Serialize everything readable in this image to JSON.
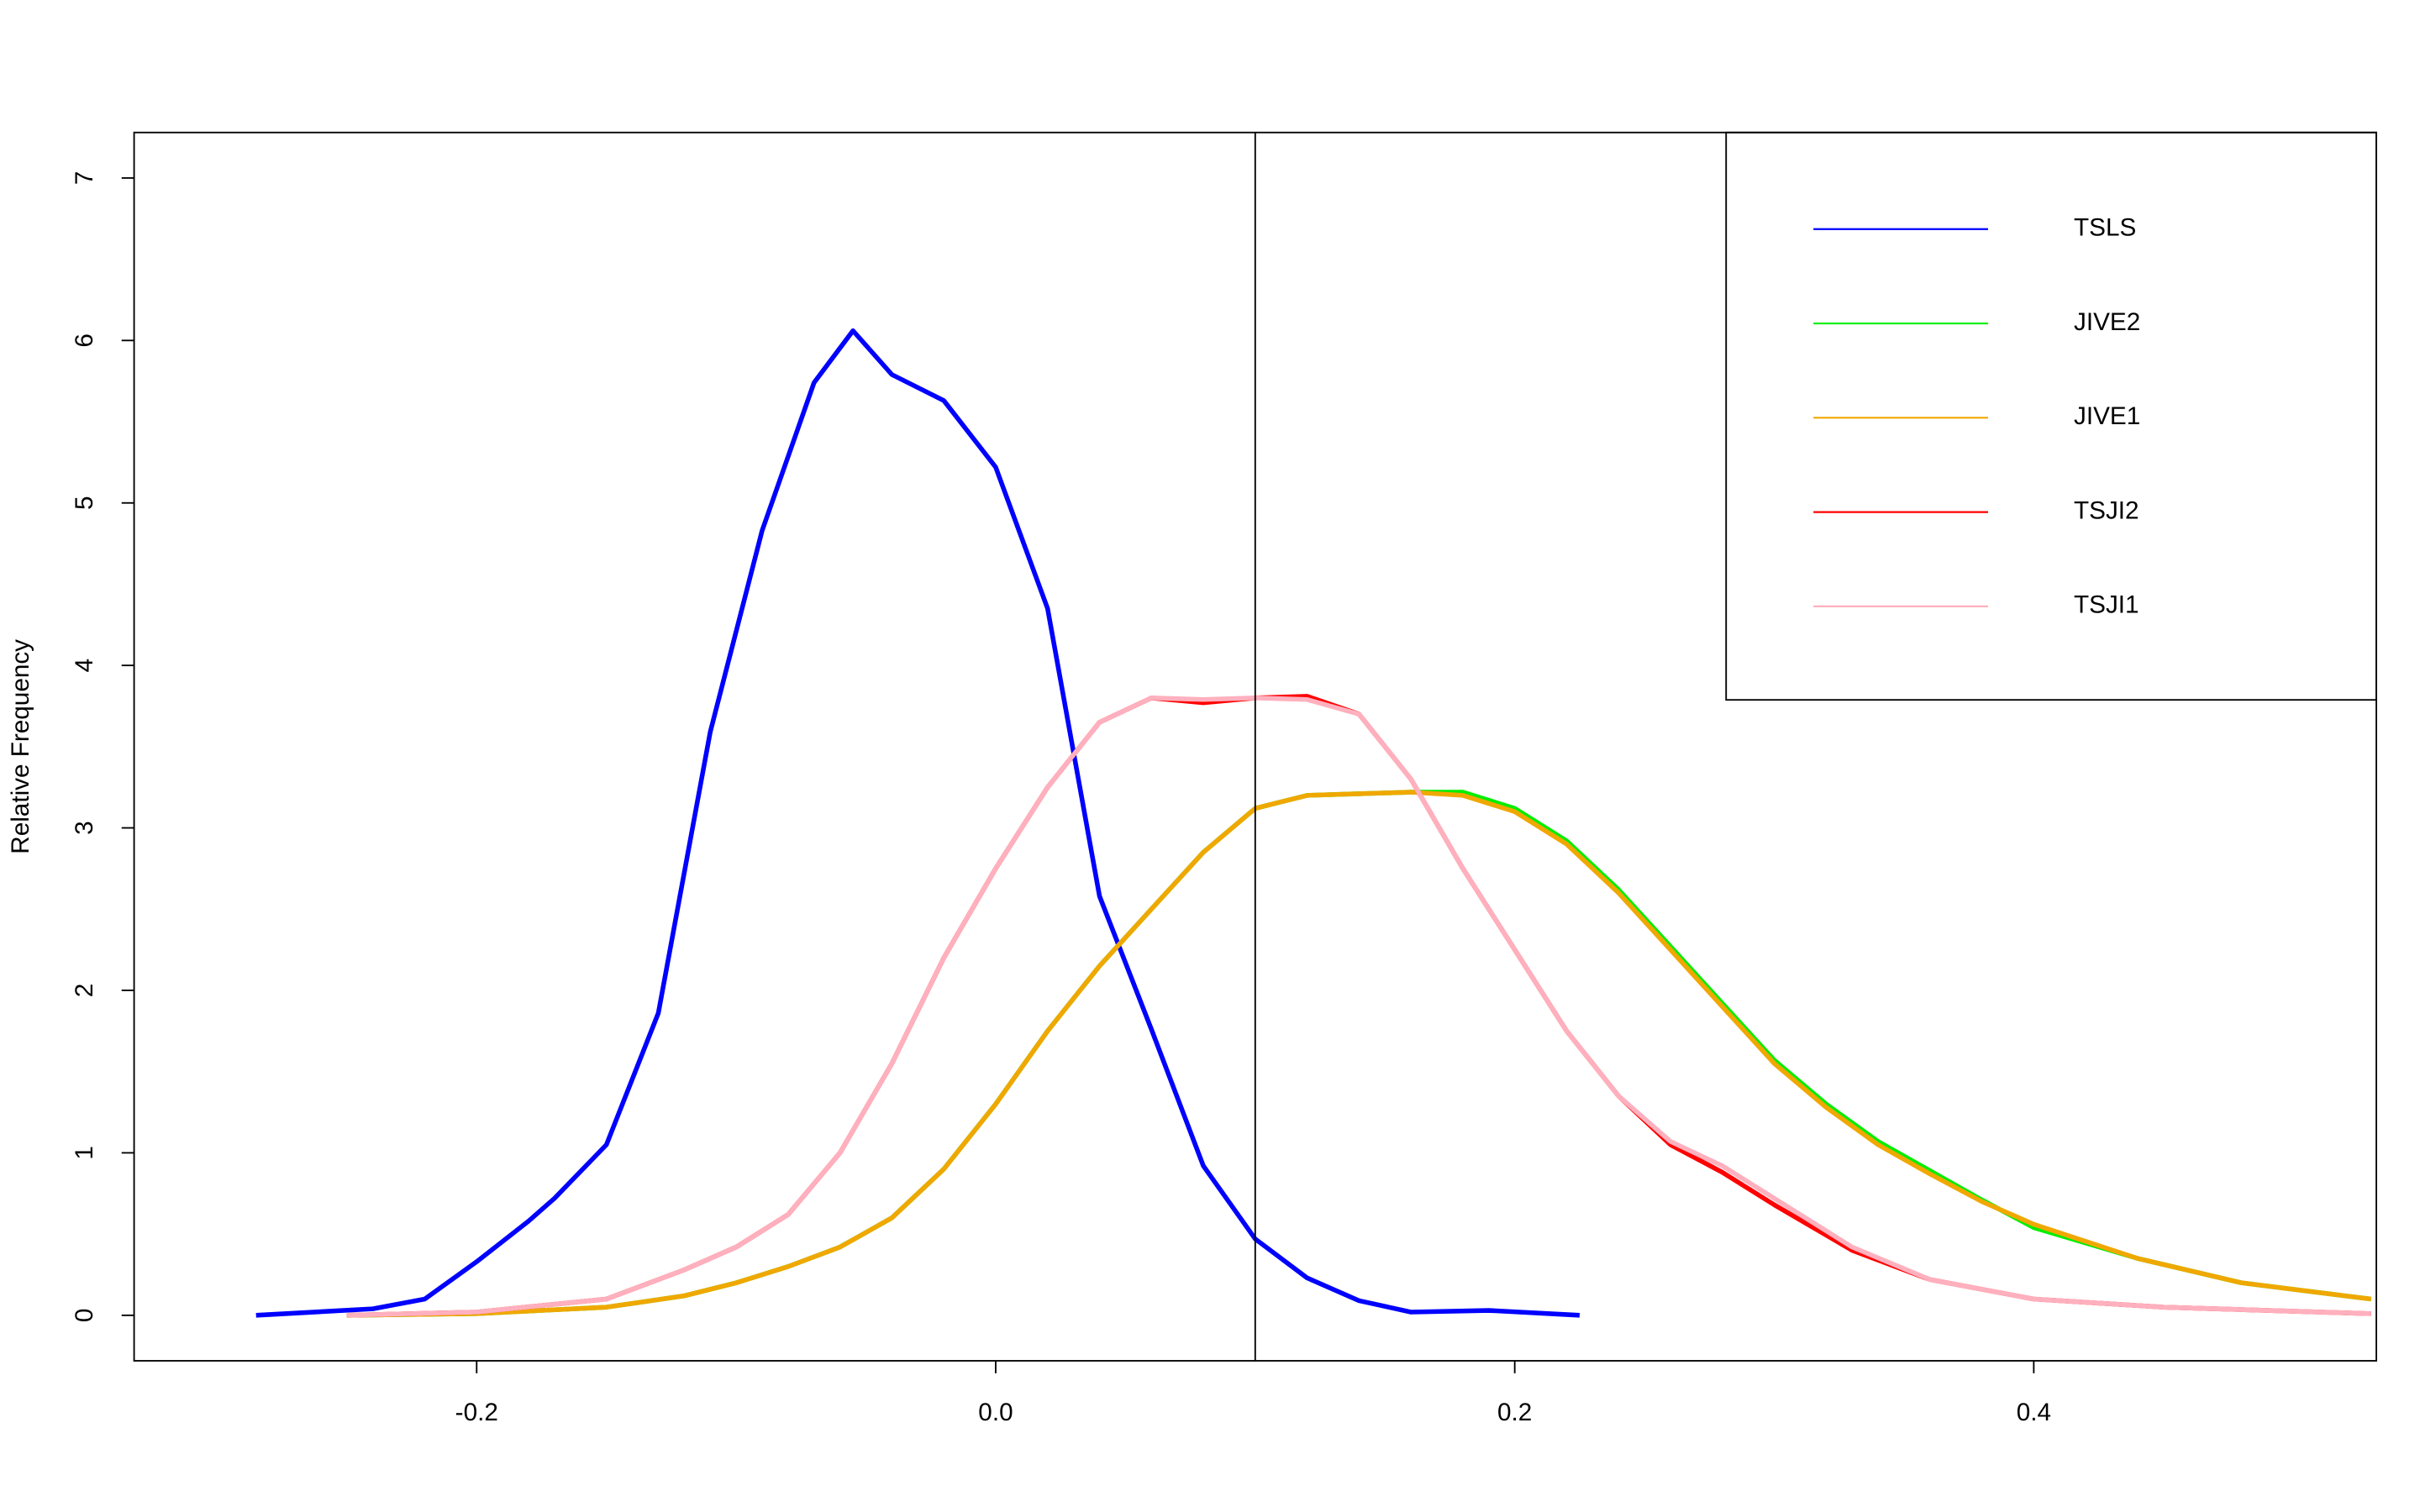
{
  "chart_data": {
    "type": "line",
    "y_label": "Relative Frequency",
    "xlim": [
      -0.332,
      0.532
    ],
    "ylim": [
      -0.28,
      7.28
    ],
    "xticks": [
      -0.2,
      {
        "value": 0,
        "label": "0.0"
      },
      0.2,
      0.4
    ],
    "yticks": [
      0,
      1,
      2,
      3,
      4,
      5,
      6,
      7
    ],
    "vline": 0.1,
    "legend": "topright",
    "series": [
      {
        "name": "TSLS",
        "color": "#0000ff",
        "x": [
          -0.285,
          -0.24,
          -0.22,
          -0.2,
          -0.18,
          -0.17,
          -0.15,
          -0.13,
          -0.11,
          -0.09,
          -0.07,
          -0.055,
          -0.04,
          -0.02,
          0.0,
          0.02,
          0.04,
          0.06,
          0.08,
          0.1,
          0.12,
          0.14,
          0.16,
          0.19,
          0.225
        ],
        "values": [
          0,
          0.04,
          0.1,
          0.33,
          0.58,
          0.72,
          1.05,
          1.86,
          3.59,
          4.83,
          5.74,
          6.06,
          5.79,
          5.63,
          5.22,
          4.35,
          2.58,
          1.76,
          0.92,
          0.47,
          0.23,
          0.09,
          0.02,
          0.03,
          0
        ]
      },
      {
        "name": "JIVE2",
        "color": "#00ee00",
        "x": [
          -0.25,
          -0.2,
          -0.15,
          -0.12,
          -0.1,
          -0.08,
          -0.06,
          -0.04,
          -0.02,
          0.0,
          0.02,
          0.04,
          0.06,
          0.08,
          0.1,
          0.12,
          0.14,
          0.16,
          0.18,
          0.2,
          0.22,
          0.24,
          0.26,
          0.28,
          0.3,
          0.32,
          0.34,
          0.36,
          0.38,
          0.4,
          0.44,
          0.48,
          0.53
        ],
        "values": [
          0,
          0.01,
          0.05,
          0.12,
          0.2,
          0.3,
          0.42,
          0.6,
          0.9,
          1.3,
          1.75,
          2.15,
          2.5,
          2.85,
          3.12,
          3.2,
          3.21,
          3.22,
          3.22,
          3.12,
          2.92,
          2.62,
          2.27,
          1.92,
          1.57,
          1.3,
          1.07,
          0.89,
          0.71,
          0.54,
          0.35,
          0.2,
          0.1
        ]
      },
      {
        "name": "JIVE1",
        "color": "#f0a800",
        "x": [
          -0.25,
          -0.2,
          -0.15,
          -0.12,
          -0.1,
          -0.08,
          -0.06,
          -0.04,
          -0.02,
          0.0,
          0.02,
          0.04,
          0.06,
          0.08,
          0.1,
          0.12,
          0.14,
          0.16,
          0.18,
          0.2,
          0.22,
          0.24,
          0.26,
          0.28,
          0.3,
          0.32,
          0.34,
          0.36,
          0.38,
          0.4,
          0.44,
          0.48,
          0.53
        ],
        "values": [
          0,
          0.01,
          0.05,
          0.12,
          0.2,
          0.3,
          0.42,
          0.6,
          0.9,
          1.3,
          1.75,
          2.15,
          2.5,
          2.85,
          3.12,
          3.2,
          3.21,
          3.22,
          3.2,
          3.1,
          2.9,
          2.6,
          2.25,
          1.9,
          1.55,
          1.28,
          1.05,
          0.87,
          0.7,
          0.56,
          0.35,
          0.2,
          0.1
        ]
      },
      {
        "name": "TSJI2",
        "color": "#ff0000",
        "x": [
          -0.25,
          -0.2,
          -0.15,
          -0.12,
          -0.1,
          -0.08,
          -0.06,
          -0.04,
          -0.02,
          0.0,
          0.02,
          0.04,
          0.06,
          0.08,
          0.1,
          0.12,
          0.14,
          0.16,
          0.18,
          0.2,
          0.22,
          0.24,
          0.26,
          0.28,
          0.3,
          0.33,
          0.36,
          0.4,
          0.45,
          0.53
        ],
        "values": [
          0,
          0.02,
          0.1,
          0.28,
          0.42,
          0.62,
          1.0,
          1.55,
          2.2,
          2.75,
          3.25,
          3.65,
          3.8,
          3.77,
          3.8,
          3.81,
          3.7,
          3.3,
          2.75,
          2.25,
          1.75,
          1.35,
          1.05,
          0.88,
          0.68,
          0.4,
          0.22,
          0.1,
          0.05,
          0.01
        ]
      },
      {
        "name": "TSJI1",
        "color": "#ffb0be",
        "x": [
          -0.25,
          -0.2,
          -0.15,
          -0.12,
          -0.1,
          -0.08,
          -0.06,
          -0.04,
          -0.02,
          0.0,
          0.02,
          0.04,
          0.06,
          0.08,
          0.1,
          0.12,
          0.14,
          0.16,
          0.18,
          0.2,
          0.22,
          0.24,
          0.26,
          0.28,
          0.3,
          0.33,
          0.36,
          0.4,
          0.45,
          0.53
        ],
        "values": [
          0,
          0.02,
          0.1,
          0.28,
          0.42,
          0.62,
          1.0,
          1.55,
          2.2,
          2.75,
          3.25,
          3.65,
          3.8,
          3.79,
          3.8,
          3.79,
          3.7,
          3.3,
          2.75,
          2.25,
          1.75,
          1.35,
          1.07,
          0.92,
          0.72,
          0.42,
          0.22,
          0.1,
          0.05,
          0.01
        ]
      }
    ]
  }
}
